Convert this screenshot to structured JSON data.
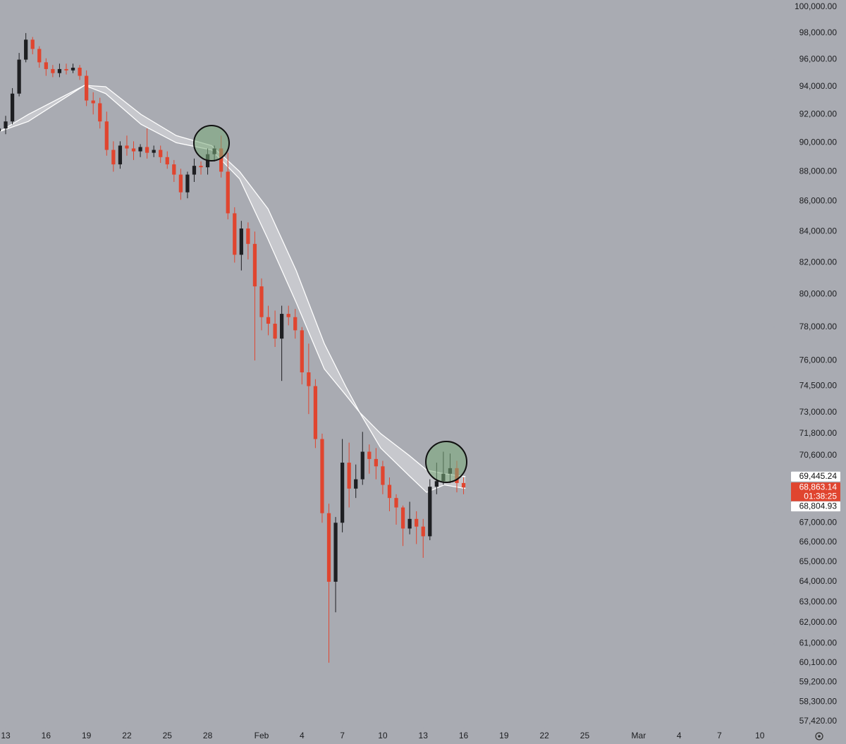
{
  "chart_data": {
    "type": "candlestick",
    "x": [
      -0.5,
      0,
      0.5,
      1,
      1.5,
      2,
      2.5,
      3,
      3.5,
      4,
      4.5,
      5,
      5.5,
      6,
      6.5,
      7,
      7.5,
      8,
      8.5,
      9,
      9.5,
      10,
      10.5,
      11,
      11.5,
      12,
      12.5,
      13,
      13.5,
      14,
      14.5,
      15,
      15.5,
      16,
      16.5,
      17,
      17.5,
      18,
      18.5,
      19,
      19.5,
      20,
      20.5,
      21,
      21.5,
      22,
      22.5,
      23,
      23.5,
      24,
      24.5,
      25,
      25.5,
      26,
      26.5,
      27,
      27.5,
      28,
      28.5,
      29,
      29.5,
      30,
      30.5,
      31,
      31.5,
      32,
      32.5,
      33,
      33.5,
      34
    ],
    "open": [
      90800,
      91000,
      91500,
      93500,
      96000,
      97500,
      96800,
      95800,
      95300,
      95000,
      95300,
      95200,
      95400,
      94800,
      93000,
      92800,
      91500,
      89500,
      88500,
      89800,
      89600,
      89400,
      89700,
      89300,
      89500,
      89000,
      88500,
      87800,
      86600,
      87800,
      88400,
      88300,
      89200,
      89600,
      88000,
      85200,
      82500,
      84200,
      83200,
      80500,
      78600,
      78200,
      77300,
      78800,
      78600,
      77800,
      75300,
      74500,
      71500,
      67500,
      64000,
      67000,
      70200,
      68800,
      69300,
      70800,
      70400,
      70000,
      69000,
      68300,
      67800,
      66700,
      67200,
      66800,
      66300,
      68900,
      69200,
      69600,
      69900,
      69100
    ],
    "high": [
      91400,
      91900,
      93900,
      96500,
      98000,
      97700,
      97000,
      96100,
      95600,
      95700,
      95700,
      95700,
      95600,
      95200,
      93600,
      93200,
      92200,
      90100,
      90100,
      90500,
      90100,
      89900,
      91000,
      89800,
      89800,
      89400,
      88800,
      88200,
      88000,
      88900,
      88700,
      89600,
      89800,
      90500,
      89300,
      85600,
      84700,
      84600,
      84000,
      81000,
      79300,
      79000,
      79300,
      79300,
      79100,
      78000,
      77000,
      74900,
      71800,
      68000,
      67300,
      71500,
      71300,
      70100,
      71900,
      71200,
      71000,
      70300,
      69400,
      68500,
      67900,
      68100,
      67600,
      67200,
      69300,
      70200,
      70800,
      70700,
      70300,
      69400
    ],
    "low": [
      90300,
      90600,
      91300,
      93300,
      95800,
      96400,
      95400,
      94800,
      94700,
      94700,
      94900,
      95000,
      94500,
      92600,
      92000,
      91000,
      89100,
      88000,
      88200,
      89100,
      88800,
      89000,
      88900,
      89000,
      88600,
      88200,
      87300,
      86100,
      86200,
      87300,
      87800,
      87800,
      88700,
      87600,
      84800,
      82000,
      81500,
      82200,
      76000,
      77800,
      77500,
      76800,
      74800,
      78100,
      77300,
      74600,
      72900,
      71000,
      67000,
      60100,
      62500,
      66500,
      67800,
      68300,
      69000,
      69600,
      69300,
      68500,
      67600,
      66900,
      65800,
      66400,
      65900,
      65200,
      66100,
      68500,
      69000,
      69100,
      68600,
      68500
    ],
    "close": [
      91000,
      91500,
      93500,
      96000,
      97500,
      96800,
      95800,
      95300,
      95000,
      95300,
      95200,
      95400,
      94800,
      93000,
      92800,
      91500,
      89500,
      88500,
      89800,
      89600,
      89400,
      89700,
      89300,
      89500,
      89000,
      88500,
      87800,
      86600,
      87800,
      88400,
      88300,
      89200,
      89600,
      88000,
      85200,
      82500,
      84200,
      83200,
      80500,
      78600,
      78200,
      77300,
      78800,
      78600,
      77800,
      75300,
      74500,
      71500,
      67500,
      64000,
      67000,
      70200,
      68800,
      69300,
      70800,
      70400,
      70000,
      69000,
      68300,
      67800,
      66700,
      67200,
      66800,
      66300,
      68900,
      69200,
      69600,
      69900,
      69100,
      68863.14
    ],
    "up_color": "#1e1f22",
    "down_color": "#e0452f",
    "bands": {
      "x": [
        -0.42,
        1.68,
        5.86,
        7.43,
        10.05,
        12.67,
        15.29,
        17.38,
        19.48,
        21.57,
        23.66,
        25.24,
        26.28,
        27.85,
        29.95,
        31.26,
        32.57,
        34.14
      ],
      "upper": [
        90800,
        92000,
        94100,
        94000,
        92000,
        90500,
        89800,
        88000,
        85500,
        81500,
        77000,
        74500,
        73000,
        71800,
        70600,
        69800,
        69600,
        69445.24
      ],
      "lower": [
        90800,
        91500,
        94100,
        93500,
        91300,
        90000,
        89500,
        87500,
        83500,
        79500,
        75500,
        74000,
        73000,
        71000,
        69500,
        68600,
        69000,
        68804.93
      ],
      "color": "#ffffff"
    },
    "price_labels": [
      {
        "value": 69445.24,
        "label": "69,445.24",
        "color": "#ffffff"
      },
      {
        "value": 68863.14,
        "label": "68,863.14",
        "color": "#e0452f"
      },
      {
        "value": 68804.93,
        "label": "68,804.93",
        "color": "#ffffff"
      }
    ],
    "countdown": "01:38:25",
    "log_scale": true,
    "xlim": [
      -0.42,
      56.9
    ],
    "xticks": [
      {
        "value": 0,
        "label": "13"
      },
      {
        "value": 3,
        "label": "16"
      },
      {
        "value": 6,
        "label": "19"
      },
      {
        "value": 9,
        "label": "22"
      },
      {
        "value": 12,
        "label": "25"
      },
      {
        "value": 15,
        "label": "28"
      },
      {
        "value": 19,
        "label": "Feb"
      },
      {
        "value": 22,
        "label": "4"
      },
      {
        "value": 25,
        "label": "7"
      },
      {
        "value": 28,
        "label": "10"
      },
      {
        "value": 31,
        "label": "13"
      },
      {
        "value": 34,
        "label": "16"
      },
      {
        "value": 37,
        "label": "19"
      },
      {
        "value": 40,
        "label": "22"
      },
      {
        "value": 43,
        "label": "25"
      },
      {
        "value": 47,
        "label": "Mar"
      },
      {
        "value": 50,
        "label": "4"
      },
      {
        "value": 53,
        "label": "7"
      },
      {
        "value": 56,
        "label": "10"
      }
    ],
    "ylim": [
      57200,
      100550
    ],
    "yticks": [
      {
        "value": 100000,
        "label": "100,000.00"
      },
      {
        "value": 98000,
        "label": "98,000.00"
      },
      {
        "value": 96000,
        "label": "96,000.00"
      },
      {
        "value": 94000,
        "label": "94,000.00"
      },
      {
        "value": 92000,
        "label": "92,000.00"
      },
      {
        "value": 90000,
        "label": "90,000.00"
      },
      {
        "value": 88000,
        "label": "88,000.00"
      },
      {
        "value": 86000,
        "label": "86,000.00"
      },
      {
        "value": 84000,
        "label": "84,000.00"
      },
      {
        "value": 82000,
        "label": "82,000.00"
      },
      {
        "value": 80000,
        "label": "80,000.00"
      },
      {
        "value": 78000,
        "label": "78,000.00"
      },
      {
        "value": 76000,
        "label": "76,000.00"
      },
      {
        "value": 74500,
        "label": "74,500.00"
      },
      {
        "value": 73000,
        "label": "73,000.00"
      },
      {
        "value": 71800,
        "label": "71,800.00"
      },
      {
        "value": 70600,
        "label": "70,600.00"
      },
      {
        "value": 67000,
        "label": "67,000.00"
      },
      {
        "value": 66000,
        "label": "66,000.00"
      },
      {
        "value": 65000,
        "label": "65,000.00"
      },
      {
        "value": 64000,
        "label": "64,000.00"
      },
      {
        "value": 63000,
        "label": "63,000.00"
      },
      {
        "value": 62000,
        "label": "62,000.00"
      },
      {
        "value": 61000,
        "label": "61,000.00"
      },
      {
        "value": 60100,
        "label": "60,100.00"
      },
      {
        "value": 59200,
        "label": "59,200.00"
      },
      {
        "value": 58300,
        "label": "58,300.00"
      },
      {
        "value": 57420,
        "label": "57,420.00"
      }
    ]
  }
}
